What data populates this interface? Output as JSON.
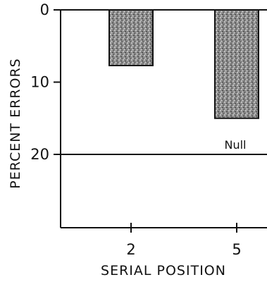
{
  "chart_data": {
    "type": "bar",
    "orientation": "downward-from-zero",
    "categories": [
      "2",
      "5"
    ],
    "values": [
      7.7,
      15
    ],
    "xlabel": "SERIAL POSITION",
    "ylabel": "PERCENT ERRORS",
    "ylim": [
      0,
      30
    ],
    "yticks": [
      {
        "value": 0,
        "label": "0"
      },
      {
        "value": 10,
        "label": "10"
      },
      {
        "value": 20,
        "label": "20"
      }
    ],
    "reference_line": {
      "value": 20,
      "label": "Null"
    },
    "y_axis_inverted": true,
    "grid": false,
    "bar_fill": "stippled gray"
  }
}
